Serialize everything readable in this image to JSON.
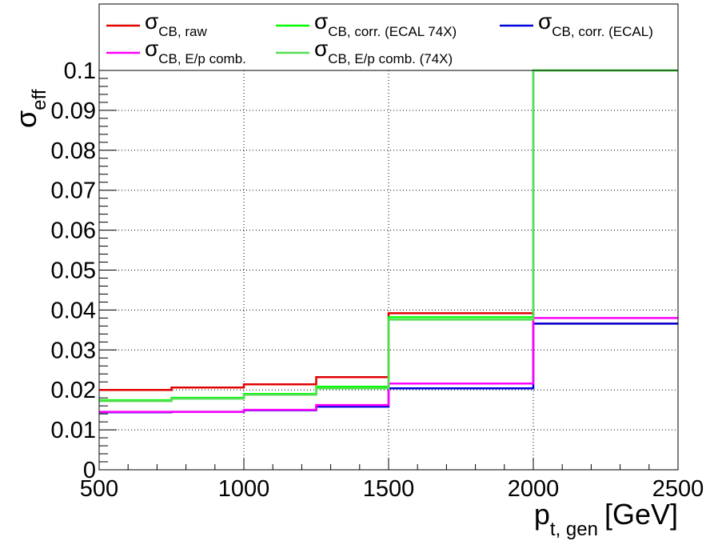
{
  "chart_data": {
    "type": "step",
    "xlabel": {
      "main": "p",
      "sub": "t, gen",
      "unit": "[GeV]"
    },
    "ylabel": {
      "main": "σ",
      "sub": "eff"
    },
    "xlim": [
      500,
      2500
    ],
    "ylim": [
      0,
      0.1
    ],
    "x_ticks": [
      "500",
      "1000",
      "1500",
      "2000",
      "2500"
    ],
    "y_ticks": [
      "0",
      "0.01",
      "0.02",
      "0.03",
      "0.04",
      "0.05",
      "0.06",
      "0.07",
      "0.08",
      "0.09",
      "0.1"
    ],
    "grid": true,
    "legend_position": "top",
    "bin_edges": [
      500,
      750,
      1000,
      1250,
      1500,
      2000,
      2500
    ],
    "series": [
      {
        "name": "σ",
        "sub": "CB, raw",
        "color": "#e00000",
        "values": [
          0.02,
          0.0206,
          0.0214,
          0.0232,
          0.0392,
          0.0366
        ]
      },
      {
        "name": "σ",
        "sub": "CB, corr. (ECAL 74X)",
        "color": "#00ff00",
        "values": [
          0.0174,
          0.018,
          0.019,
          0.0208,
          0.0382,
          0.1
        ]
      },
      {
        "name": "σ",
        "sub": "CB, corr. (ECAL)",
        "color": "#0000dd",
        "values": [
          0.0144,
          0.0145,
          0.0149,
          0.0158,
          0.0204,
          0.0366
        ]
      },
      {
        "name": "σ",
        "sub": "CB, E/p comb.",
        "color": "#ff00ff",
        "values": [
          0.0145,
          0.0145,
          0.015,
          0.0162,
          0.0216,
          0.038
        ]
      },
      {
        "name": "σ",
        "sub": "CB, E/p comb. (74X)",
        "color": "#55dd55",
        "values": [
          0.0172,
          0.0178,
          0.0188,
          0.0204,
          0.0376,
          0.1
        ]
      }
    ]
  }
}
